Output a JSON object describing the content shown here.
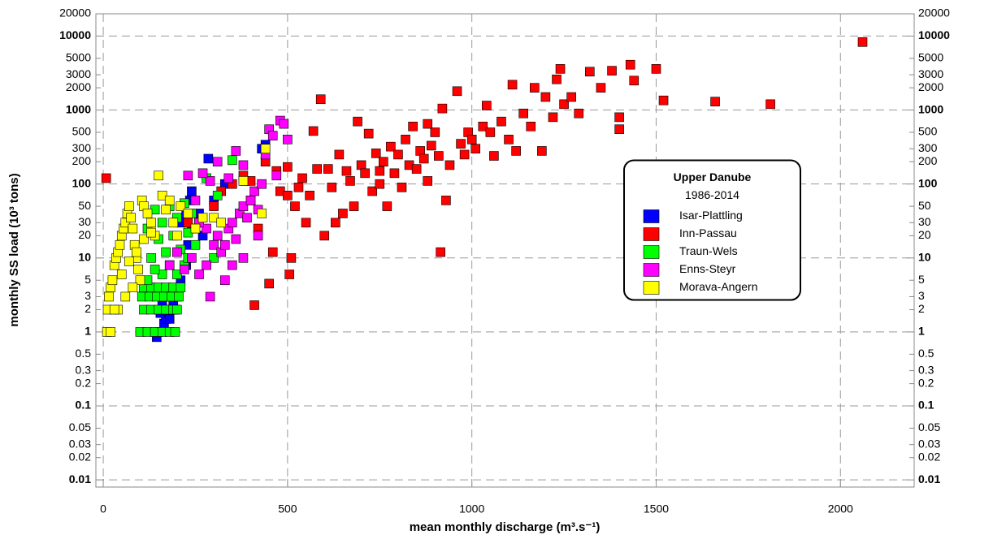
{
  "chart_data": {
    "type": "scatter",
    "title": "Upper Danube",
    "subtitle": "1986-2014",
    "xlabel": "mean monthly discharge (m³.s⁻¹)",
    "ylabel": "monthly SS load (10³ tons)",
    "xlim": [
      -20,
      2200
    ],
    "xticks": [
      0,
      500,
      1000,
      1500,
      2000
    ],
    "ylim": [
      0.008,
      20000
    ],
    "yscale": "log",
    "yticks": [
      20000,
      10000,
      5000,
      3000,
      2000,
      1000,
      500,
      300,
      200,
      100,
      50,
      30,
      20,
      10,
      5,
      3,
      2,
      1,
      0.5,
      0.3,
      0.2,
      0.1,
      0.05,
      0.03,
      0.02,
      0.01
    ],
    "grid": true,
    "legend": "right",
    "series": [
      {
        "name": "Isar-Plattling",
        "color": "#0000ff",
        "x": [
          145,
          150,
          165,
          170,
          180,
          155,
          175,
          190,
          160,
          200,
          210,
          225,
          230,
          240,
          225,
          235,
          240,
          285,
          300,
          330,
          385,
          430,
          440,
          260,
          210,
          270,
          195
        ],
        "values": [
          0.85,
          1,
          1.3,
          1.5,
          1.5,
          1.8,
          2,
          2.5,
          2.5,
          3,
          5,
          8,
          15,
          25,
          40,
          60,
          80,
          220,
          60,
          100,
          110,
          300,
          340,
          40,
          30,
          20,
          2
        ]
      },
      {
        "name": "Inn-Passau",
        "color": "#ff0000",
        "x": [
          8,
          230,
          300,
          320,
          350,
          380,
          400,
          410,
          420,
          450,
          460,
          480,
          500,
          505,
          510,
          520,
          530,
          540,
          550,
          560,
          570,
          590,
          600,
          610,
          620,
          630,
          640,
          650,
          660,
          670,
          690,
          700,
          710,
          720,
          730,
          740,
          750,
          760,
          770,
          780,
          790,
          800,
          810,
          820,
          830,
          840,
          850,
          860,
          870,
          880,
          890,
          900,
          910,
          915,
          920,
          930,
          940,
          960,
          970,
          980,
          990,
          1000,
          1010,
          1030,
          1040,
          1050,
          1060,
          1080,
          1100,
          1110,
          1120,
          1140,
          1160,
          1170,
          1190,
          1200,
          1220,
          1230,
          1240,
          1250,
          1270,
          1290,
          1320,
          1350,
          1380,
          1400,
          1400,
          1430,
          1440,
          1500,
          1520,
          1660,
          1810,
          2060,
          400,
          470,
          440,
          580,
          750,
          500,
          680,
          880
        ],
        "values": [
          120,
          30,
          50,
          80,
          100,
          130,
          60,
          2.3,
          25,
          4.5,
          12,
          80,
          170,
          6,
          10,
          50,
          90,
          120,
          30,
          70,
          520,
          1400,
          20,
          160,
          90,
          30,
          250,
          40,
          150,
          110,
          700,
          180,
          140,
          480,
          80,
          260,
          100,
          200,
          50,
          320,
          140,
          250,
          90,
          400,
          180,
          600,
          160,
          280,
          220,
          110,
          330,
          500,
          240,
          12,
          1050,
          60,
          180,
          1800,
          350,
          250,
          500,
          400,
          300,
          600,
          1150,
          500,
          240,
          700,
          400,
          2200,
          280,
          900,
          600,
          2000,
          280,
          1500,
          800,
          2600,
          3600,
          1200,
          1500,
          900,
          3300,
          2000,
          3400,
          800,
          550,
          4100,
          2500,
          3600,
          1350,
          1300,
          1200,
          8300,
          110,
          150,
          200,
          160,
          150,
          70,
          50,
          650
        ]
      },
      {
        "name": "Traun-Wels",
        "color": "#00ff00",
        "x": [
          100,
          120,
          140,
          160,
          180,
          195,
          110,
          130,
          150,
          170,
          190,
          200,
          105,
          125,
          145,
          165,
          185,
          205,
          110,
          130,
          150,
          170,
          190,
          210,
          120,
          160,
          200,
          140,
          180,
          220,
          130,
          170,
          210,
          250,
          150,
          190,
          230,
          120,
          160,
          200,
          240,
          140,
          180,
          220,
          260,
          280,
          350,
          300,
          310,
          230
        ],
        "values": [
          1,
          1,
          1,
          1,
          1,
          1,
          2,
          2,
          2,
          2,
          2,
          2,
          3,
          3,
          3,
          3,
          3,
          3,
          4,
          4,
          4,
          4,
          4,
          4,
          5,
          6,
          6,
          7,
          8,
          8,
          10,
          12,
          13,
          15,
          18,
          20,
          22,
          25,
          30,
          35,
          40,
          45,
          50,
          55,
          30,
          120,
          210,
          10,
          70,
          10
        ]
      },
      {
        "name": "Enns-Steyr",
        "color": "#ff00ff",
        "x": [
          220,
          240,
          260,
          280,
          290,
          300,
          310,
          320,
          330,
          340,
          350,
          360,
          370,
          380,
          390,
          400,
          410,
          420,
          440,
          450,
          460,
          480,
          490,
          500,
          470,
          430,
          380,
          360,
          340,
          310,
          290,
          270,
          250,
          230,
          200,
          380,
          330,
          280,
          420,
          350,
          180,
          260
        ],
        "values": [
          7,
          10,
          6,
          8,
          3,
          15,
          20,
          12,
          5,
          25,
          30,
          18,
          40,
          50,
          35,
          60,
          80,
          45,
          250,
          550,
          450,
          720,
          650,
          400,
          130,
          100,
          180,
          280,
          120,
          200,
          110,
          140,
          60,
          130,
          12,
          10,
          15,
          25,
          20,
          8,
          8,
          30
        ]
      },
      {
        "name": "Morava-Angern",
        "color": "#ffff00",
        "x": [
          10,
          12,
          15,
          20,
          25,
          30,
          35,
          40,
          45,
          50,
          55,
          60,
          65,
          70,
          75,
          80,
          85,
          90,
          95,
          100,
          105,
          110,
          120,
          130,
          140,
          150,
          160,
          170,
          180,
          190,
          200,
          210,
          230,
          250,
          270,
          300,
          320,
          380,
          440,
          430,
          20,
          40,
          60,
          80,
          30,
          50,
          70,
          90,
          110,
          130
        ],
        "values": [
          1,
          2,
          3,
          4,
          5,
          8,
          10,
          12,
          15,
          20,
          25,
          30,
          40,
          50,
          35,
          25,
          15,
          10,
          7,
          5,
          60,
          50,
          40,
          30,
          20,
          130,
          70,
          45,
          60,
          30,
          20,
          50,
          40,
          25,
          35,
          35,
          30,
          110,
          300,
          40,
          1,
          2,
          3,
          4,
          2,
          6,
          9,
          12,
          18,
          22
        ]
      }
    ]
  }
}
